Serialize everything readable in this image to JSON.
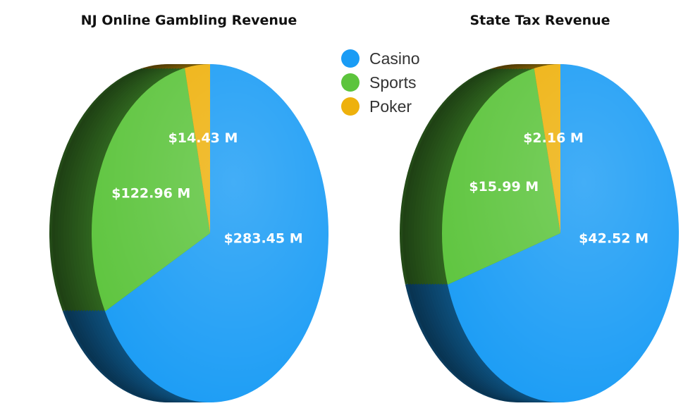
{
  "colors": {
    "casino": "#1a9cf5",
    "sports": "#5cc43c",
    "poker": "#eeb10c"
  },
  "legend": [
    {
      "name": "Casino",
      "color": "#1a9cf5"
    },
    {
      "name": "Sports",
      "color": "#5cc43c"
    },
    {
      "name": "Poker",
      "color": "#eeb10c"
    }
  ],
  "chart_data": [
    {
      "type": "pie",
      "title": "NJ Online Gambling Revenue",
      "slices": [
        {
          "name": "Casino",
          "value": 283.45,
          "label": "$283.45 M"
        },
        {
          "name": "Sports",
          "value": 122.96,
          "label": "$122.96 M"
        },
        {
          "name": "Poker",
          "value": 14.43,
          "label": "$14.43 M"
        }
      ],
      "legend_position": "center-top"
    },
    {
      "type": "pie",
      "title": "State Tax Revenue",
      "slices": [
        {
          "name": "Casino",
          "value": 42.52,
          "label": "$42.52 M"
        },
        {
          "name": "Sports",
          "value": 15.99,
          "label": "$15.99 M"
        },
        {
          "name": "Poker",
          "value": 2.16,
          "label": "$2.16 M"
        }
      ],
      "legend_position": "center-top"
    }
  ]
}
